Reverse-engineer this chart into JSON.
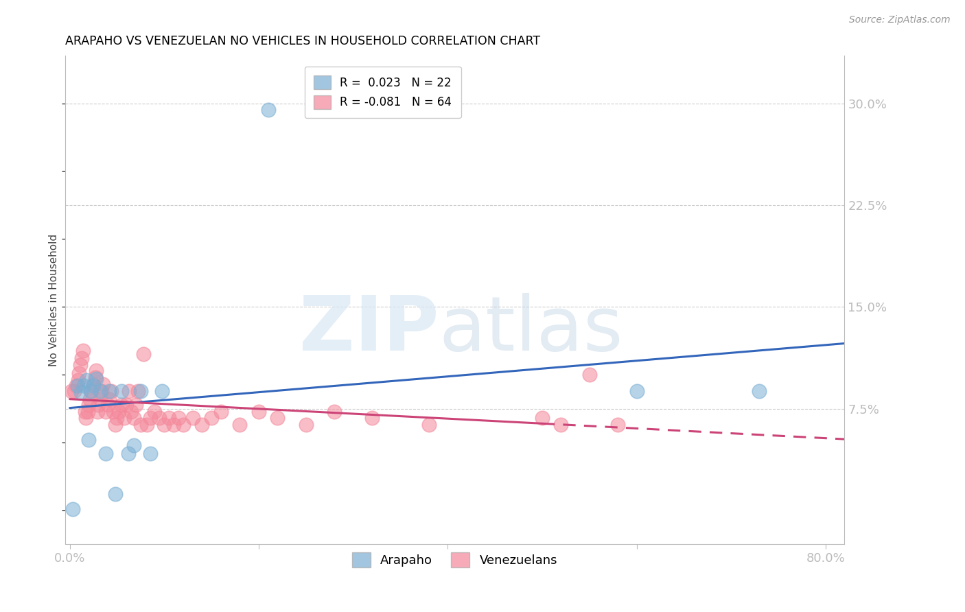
{
  "title": "ARAPAHO VS VENEZUELAN NO VEHICLES IN HOUSEHOLD CORRELATION CHART",
  "source": "Source: ZipAtlas.com",
  "ylabel": "No Vehicles in Household",
  "ytick_labels": [
    "30.0%",
    "22.5%",
    "15.0%",
    "7.5%"
  ],
  "ytick_values": [
    0.3,
    0.225,
    0.15,
    0.075
  ],
  "xlim": [
    -0.005,
    0.82
  ],
  "ylim": [
    -0.025,
    0.335
  ],
  "arapaho_color": "#7BAFD4",
  "venezuelan_color": "#F4889A",
  "arapaho_line_color": "#3366BB",
  "venezuelan_line_color": "#CC4477",
  "arapaho_R": 0.023,
  "arapaho_N": 22,
  "venezuelan_R": -0.081,
  "venezuelan_N": 64,
  "legend_label_arapaho": "Arapaho",
  "legend_label_venezuelan": "Venezuelans",
  "arapaho_x": [
    0.003,
    0.008,
    0.012,
    0.015,
    0.018,
    0.02,
    0.022,
    0.025,
    0.028,
    0.032,
    0.038,
    0.042,
    0.048,
    0.055,
    0.062,
    0.068,
    0.075,
    0.085,
    0.098,
    0.21,
    0.6,
    0.73
  ],
  "arapaho_y": [
    0.001,
    0.092,
    0.087,
    0.092,
    0.096,
    0.052,
    0.088,
    0.092,
    0.097,
    0.088,
    0.042,
    0.088,
    0.012,
    0.088,
    0.042,
    0.048,
    0.088,
    0.042,
    0.088,
    0.295,
    0.088,
    0.088
  ],
  "venezuelan_x": [
    0.002,
    0.005,
    0.007,
    0.009,
    0.01,
    0.011,
    0.013,
    0.014,
    0.016,
    0.017,
    0.019,
    0.02,
    0.021,
    0.023,
    0.025,
    0.027,
    0.028,
    0.029,
    0.03,
    0.032,
    0.034,
    0.035,
    0.038,
    0.04,
    0.042,
    0.044,
    0.046,
    0.048,
    0.05,
    0.052,
    0.055,
    0.058,
    0.06,
    0.063,
    0.065,
    0.068,
    0.07,
    0.072,
    0.075,
    0.078,
    0.082,
    0.085,
    0.09,
    0.095,
    0.1,
    0.105,
    0.11,
    0.115,
    0.12,
    0.13,
    0.14,
    0.15,
    0.16,
    0.18,
    0.2,
    0.22,
    0.25,
    0.28,
    0.32,
    0.38,
    0.5,
    0.52,
    0.55,
    0.58
  ],
  "venezuelan_y": [
    0.088,
    0.088,
    0.092,
    0.096,
    0.101,
    0.107,
    0.112,
    0.118,
    0.073,
    0.068,
    0.073,
    0.078,
    0.082,
    0.088,
    0.093,
    0.098,
    0.103,
    0.073,
    0.078,
    0.082,
    0.088,
    0.093,
    0.073,
    0.078,
    0.082,
    0.088,
    0.073,
    0.063,
    0.068,
    0.073,
    0.078,
    0.068,
    0.078,
    0.088,
    0.073,
    0.068,
    0.078,
    0.088,
    0.063,
    0.115,
    0.063,
    0.068,
    0.073,
    0.068,
    0.063,
    0.068,
    0.063,
    0.068,
    0.063,
    0.068,
    0.063,
    0.068,
    0.073,
    0.063,
    0.073,
    0.068,
    0.063,
    0.073,
    0.068,
    0.063,
    0.068,
    0.063,
    0.1,
    0.063
  ],
  "grid_color": "#CCCCCC",
  "grid_style": "--",
  "spine_color": "#BBBBBB",
  "xtick_positions": [
    0.0,
    0.2,
    0.4,
    0.6,
    0.8
  ],
  "xtick_labels": [
    "0.0%",
    "",
    "",
    "",
    "80.0%"
  ],
  "tick_color": "#6699CC"
}
